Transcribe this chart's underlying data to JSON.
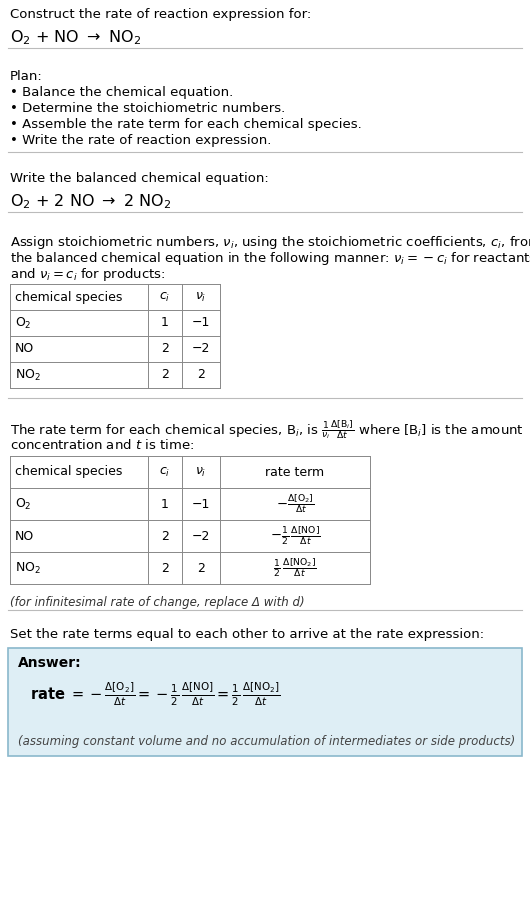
{
  "bg_color": "#ffffff",
  "text_color": "#000000",
  "answer_bg": "#deeef5",
  "answer_border": "#8ab8cc",
  "title_line1": "Construct the rate of reaction expression for:",
  "section1_header": "Plan:",
  "section1_bullets": [
    "• Balance the chemical equation.",
    "• Determine the stoichiometric numbers.",
    "• Assemble the rate term for each chemical species.",
    "• Write the rate of reaction expression."
  ],
  "section2_header": "Write the balanced chemical equation:",
  "section3_text1": "Assign stoichiometric numbers, using the stoichiometric coefficients, from",
  "section3_text2": "the balanced chemical equation in the following manner:",
  "section3_text3": "and for products:",
  "section4_footnote": "(for infinitesimal rate of change, replace Δ with d)",
  "section5_text": "Set the rate terms equal to each other to arrive at the rate expression:",
  "answer_label": "Answer:",
  "answer_footnote": "(assuming constant volume and no accumulation of intermediates or side products)"
}
